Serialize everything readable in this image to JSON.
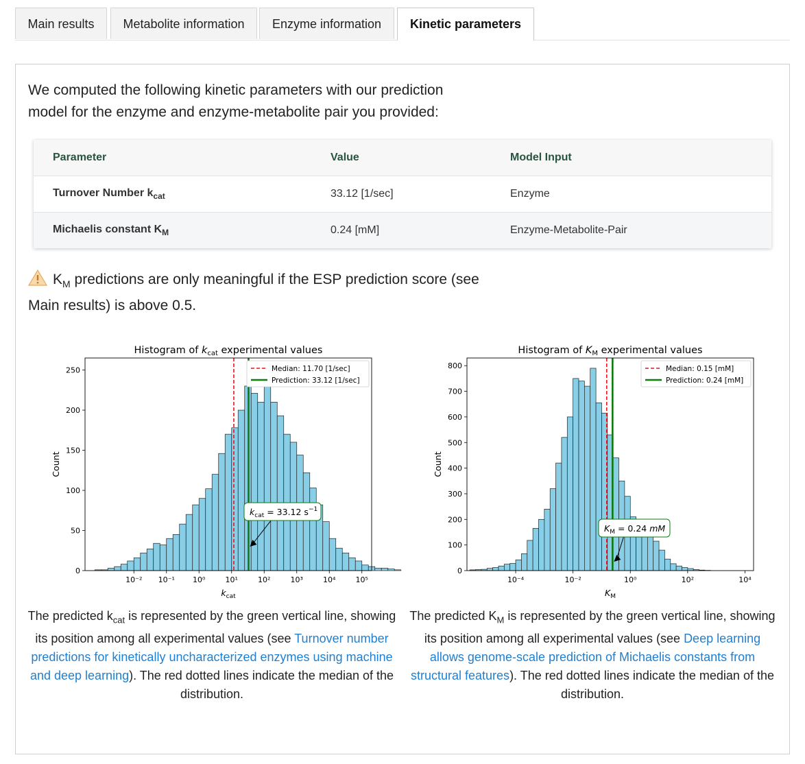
{
  "tabs": [
    {
      "label": "Main results",
      "active": false
    },
    {
      "label": "Metabolite information",
      "active": false
    },
    {
      "label": "Enzyme information",
      "active": false
    },
    {
      "label": "Kinetic parameters",
      "active": true
    }
  ],
  "intro": "We computed the following kinetic parameters with our prediction model for the enzyme and enzyme-metabolite pair you provided:",
  "table": {
    "headers": [
      "Parameter",
      "Value",
      "Model Input"
    ],
    "rows": [
      {
        "param": "Turnover Number k",
        "sub": "cat",
        "value": "33.12 [1/sec]",
        "input": "Enzyme"
      },
      {
        "param": "Michaelis constant K",
        "sub": "M",
        "value": "0.24 [mM]",
        "input": "Enzyme-Metabolite-Pair"
      }
    ]
  },
  "warning": {
    "icon": "warning-triangle-icon",
    "k": "K",
    "sub": "M",
    "text": " predictions are only meaningful if the ESP prediction score (see Main results) is above 0.5."
  },
  "captions": [
    {
      "pre": "The predicted k",
      "sub": "cat",
      "mid": " is represented by the green vertical line, showing its position among all experimental values (see ",
      "link": "Turnover number predictions for kinetically uncharacterized enzymes using machine and deep learning",
      "post": "). The red dotted lines indicate the median of the distribution."
    },
    {
      "pre": "The predicted K",
      "sub": "M",
      "mid": " is represented by the green vertical line, showing its position among all experimental values (see ",
      "link": "Deep learning allows genome-scale prediction of Michaelis constants from structural features",
      "post": "). The red dotted lines indicate the median of the distribution."
    }
  ],
  "colors": {
    "bar": "#87cee6",
    "median": "#e0161b",
    "prediction": "#0f7a0f",
    "accent": "#1f7fd0"
  },
  "chart_data": [
    {
      "type": "bar",
      "title_pre": "Histogram of ",
      "title_var": "k",
      "title_sub": "cat",
      "title_post": " experimental values",
      "xlabel_var": "k",
      "xlabel_sub": "cat",
      "ylabel": "Count",
      "x_scale": "log10",
      "xlim_log10": [
        -3.5,
        5.3
      ],
      "ylim": [
        0,
        265
      ],
      "yticks": [
        0,
        50,
        100,
        150,
        200,
        250
      ],
      "xtick_exponents": [
        -2,
        -1,
        0,
        1,
        2,
        3,
        4,
        5
      ],
      "bin_width_log10": 0.2,
      "bin_start_log10": -3.2,
      "values": [
        1,
        1,
        3,
        5,
        8,
        12,
        16,
        22,
        27,
        34,
        32,
        40,
        45,
        58,
        70,
        82,
        90,
        102,
        120,
        146,
        170,
        178,
        200,
        230,
        221,
        210,
        255,
        210,
        193,
        170,
        160,
        144,
        122,
        103,
        82,
        61,
        40,
        28,
        22,
        16,
        12,
        7,
        5,
        3,
        3,
        2,
        1
      ],
      "median": 11.7,
      "prediction": 33.12,
      "legend": [
        "Median: 11.70 [1/sec]",
        "Prediction: 33.12 [1/sec]"
      ],
      "legend_position": "top-right",
      "annotation": {
        "var": "k",
        "sub": "cat",
        "text": " = 33.12 s",
        "sup": "−1",
        "target": 33.12
      },
      "grid": false
    },
    {
      "type": "bar",
      "title_pre": "Histogram of ",
      "title_var": "K",
      "title_sub": "M",
      "title_post": " experimental values",
      "xlabel_var": "K",
      "xlabel_sub": "M",
      "ylabel": "Count",
      "x_scale": "log10",
      "xlim_log10": [
        -5.7,
        4.3
      ],
      "ylim": [
        0,
        830
      ],
      "yticks": [
        0,
        100,
        200,
        300,
        400,
        500,
        600,
        700,
        800
      ],
      "xtick_exponents": [
        -4,
        -2,
        0,
        2,
        4
      ],
      "bin_width_log10": 0.2,
      "bin_start_log10": -5.6,
      "values": [
        3,
        4,
        5,
        9,
        12,
        18,
        25,
        28,
        42,
        66,
        118,
        165,
        200,
        240,
        320,
        420,
        520,
        600,
        750,
        740,
        720,
        790,
        655,
        615,
        530,
        440,
        350,
        290,
        210,
        190,
        155,
        150,
        115,
        80,
        45,
        27,
        18,
        12,
        8,
        4,
        2,
        1
      ],
      "median": 0.15,
      "prediction": 0.24,
      "legend": [
        "Median: 0.15 [mM]",
        "Prediction: 0.24 [mM]"
      ],
      "legend_position": "top-right",
      "annotation": {
        "var": "K",
        "sub": "M",
        "text": " = 0.24 ",
        "unit": "mM",
        "target": 0.24
      },
      "grid": false
    }
  ]
}
